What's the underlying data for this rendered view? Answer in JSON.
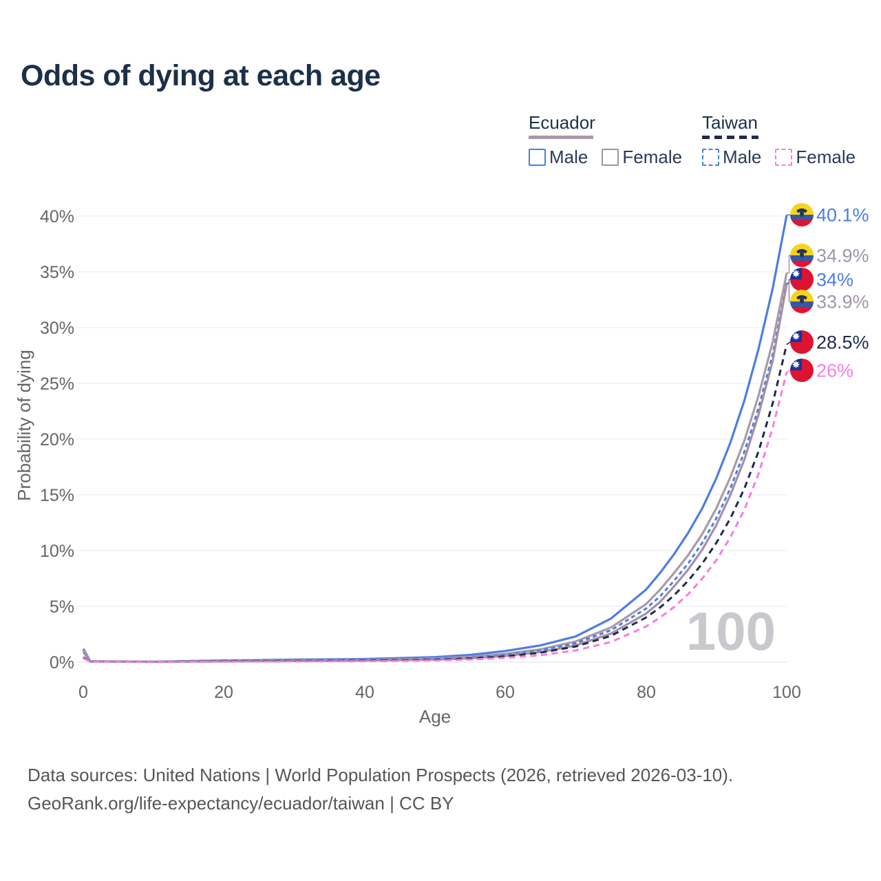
{
  "title": "Odds of dying at each age",
  "legend": {
    "groups": [
      {
        "country": "Ecuador",
        "underline_color": "#a89aa8",
        "underline_dash": false,
        "items": [
          {
            "label": "Male",
            "color": "#4d7de2",
            "dash": false
          },
          {
            "label": "Female",
            "color": "#a48fa4",
            "dash": false
          }
        ]
      },
      {
        "country": "Taiwan",
        "underline_color": "#1e2b49",
        "underline_dash": true,
        "items": [
          {
            "label": "Male",
            "color": "#4d7de2",
            "dash": true
          },
          {
            "label": "Female",
            "color": "#f87ce3",
            "dash": true
          }
        ]
      }
    ]
  },
  "chart_data": {
    "type": "line",
    "title": "Odds of dying at each age",
    "xlabel": "Age",
    "ylabel": "Probability of dying",
    "xlim": [
      0,
      100
    ],
    "ylim": [
      0,
      40
    ],
    "grid": true,
    "xticks": [
      "0",
      "20",
      "40",
      "60",
      "80",
      "100"
    ],
    "yticks": [
      "0%",
      "5%",
      "10%",
      "15%",
      "20%",
      "25%",
      "30%",
      "35%",
      "40%"
    ],
    "watermark": "100",
    "ages": [
      0,
      1,
      10,
      20,
      30,
      40,
      50,
      55,
      60,
      65,
      70,
      75,
      80,
      82,
      84,
      86,
      88,
      90,
      92,
      94,
      96,
      98,
      100
    ],
    "series": [
      {
        "id": "ecuador-male",
        "country": "Ecuador",
        "sex": "Male",
        "color": "#4d7de2",
        "dash": null,
        "values": [
          1.2,
          0.08,
          0.04,
          0.15,
          0.22,
          0.28,
          0.45,
          0.65,
          1.0,
          1.5,
          2.3,
          3.9,
          6.5,
          8.0,
          9.7,
          11.6,
          13.8,
          16.5,
          19.7,
          23.5,
          28.1,
          33.5,
          40.1
        ],
        "end_label": {
          "text": "40.1%",
          "color": "#4d7de2",
          "flag": "ecuador"
        }
      },
      {
        "id": "ecuador-both",
        "country": "Ecuador",
        "sex": "Both sexes",
        "color": "#a89aa8",
        "dash": null,
        "values": [
          1.05,
          0.07,
          0.03,
          0.1,
          0.15,
          0.2,
          0.33,
          0.48,
          0.75,
          1.15,
          1.85,
          3.1,
          5.2,
          6.5,
          8.0,
          9.6,
          11.5,
          13.8,
          16.6,
          19.9,
          23.9,
          28.7,
          34.9
        ],
        "end_label": {
          "text": "34.9%",
          "color": "#a295a8",
          "flag": "ecuador"
        }
      },
      {
        "id": "taiwan-male",
        "country": "Taiwan",
        "sex": "Male",
        "color": "#4d7de2",
        "dash": "6 4.5",
        "values": [
          0.45,
          0.04,
          0.03,
          0.09,
          0.13,
          0.17,
          0.27,
          0.4,
          0.65,
          1.05,
          1.7,
          2.85,
          4.8,
          5.9,
          7.3,
          8.85,
          10.7,
          12.9,
          15.6,
          18.9,
          22.8,
          27.6,
          34.0
        ],
        "end_label": {
          "text": "34%",
          "color": "#4d7de2",
          "flag": "taiwan"
        }
      },
      {
        "id": "ecuador-female",
        "country": "Ecuador",
        "sex": "Female",
        "color": "#a48fa4",
        "dash": null,
        "values": [
          0.9,
          0.06,
          0.025,
          0.07,
          0.1,
          0.14,
          0.22,
          0.33,
          0.55,
          0.9,
          1.5,
          2.55,
          4.35,
          5.4,
          6.8,
          8.3,
          10.1,
          12.3,
          15.0,
          18.2,
          22.2,
          27.0,
          33.9
        ],
        "end_label": {
          "text": "33.9%",
          "color": "#a295a8",
          "flag": "ecuador"
        }
      },
      {
        "id": "taiwan-both",
        "country": "Taiwan",
        "sex": "Both sexes",
        "color": "#1e2b49",
        "dash": "9 6.5",
        "values": [
          0.4,
          0.035,
          0.025,
          0.07,
          0.1,
          0.13,
          0.21,
          0.32,
          0.52,
          0.85,
          1.4,
          2.35,
          4.0,
          4.9,
          6.0,
          7.3,
          8.85,
          10.7,
          12.9,
          15.6,
          18.9,
          23.2,
          28.5
        ],
        "end_label": {
          "text": "28.5%",
          "color": "#1e2b49",
          "flag": "taiwan"
        }
      },
      {
        "id": "taiwan-female",
        "country": "Taiwan",
        "sex": "Female",
        "color": "#f87ce3",
        "dash": "9 6.5",
        "values": [
          0.35,
          0.03,
          0.02,
          0.04,
          0.06,
          0.08,
          0.15,
          0.23,
          0.38,
          0.62,
          1.05,
          1.8,
          3.2,
          4.0,
          4.95,
          6.1,
          7.5,
          9.15,
          11.2,
          13.7,
          16.9,
          21.0,
          26.0
        ],
        "end_label": {
          "text": "26%",
          "color": "#f87ce3",
          "flag": "taiwan"
        }
      }
    ]
  },
  "footer": {
    "line1": "Data sources: United Nations | World Population Prospects (2026, retrieved 2026-03-10).",
    "line2": "GeoRank.org/life-expectancy/ecuador/taiwan | CC BY"
  }
}
